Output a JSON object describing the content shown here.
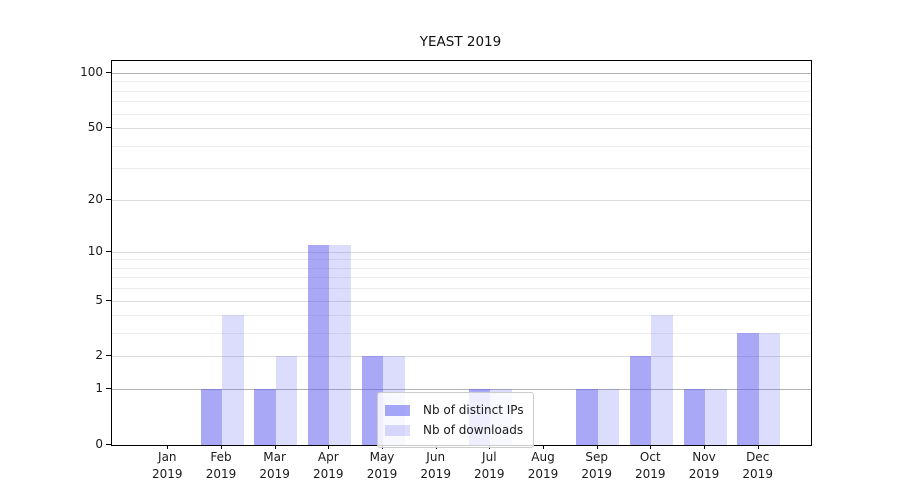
{
  "chart_data": {
    "type": "bar",
    "title": "YEAST 2019",
    "categories": [
      "Jan",
      "Feb",
      "Mar",
      "Apr",
      "May",
      "Jun",
      "Jul",
      "Aug",
      "Sep",
      "Oct",
      "Nov",
      "Dec"
    ],
    "x_year_label": "2019",
    "series": [
      {
        "name": "Nb of distinct IPs",
        "key": "distinct-ips",
        "color": "rgba(90,90,240,0.53)",
        "values": [
          0,
          1,
          1,
          11,
          2,
          0,
          1,
          0,
          1,
          2,
          1,
          3
        ]
      },
      {
        "name": "Nb of downloads",
        "key": "downloads",
        "color": "rgba(90,90,240,0.21)",
        "values": [
          0,
          4,
          2,
          11,
          2,
          0,
          1,
          0,
          1,
          4,
          1,
          3
        ]
      }
    ],
    "xlabel": "",
    "ylabel": "",
    "yscale": "log1p",
    "ylim": [
      0,
      116
    ],
    "y_ticks": [
      0,
      1,
      2,
      5,
      10,
      20,
      50,
      100
    ],
    "y_minor_gridlines": [
      3,
      4,
      6,
      7,
      8,
      9,
      30,
      40,
      60,
      70,
      80,
      90
    ],
    "emphasized_gridlines": [
      1,
      100
    ],
    "grid": true,
    "legend_position": "lower center",
    "colors": {
      "grid_major_dark": "#b3b3b3",
      "grid_major": "#dcdcdc",
      "grid_minor": "#ededed",
      "spine": "#000000",
      "axis_text": "#1a1a1a",
      "legend_border": "#cccccc",
      "legend_bg": "rgba(255,255,255,0.8)"
    }
  }
}
